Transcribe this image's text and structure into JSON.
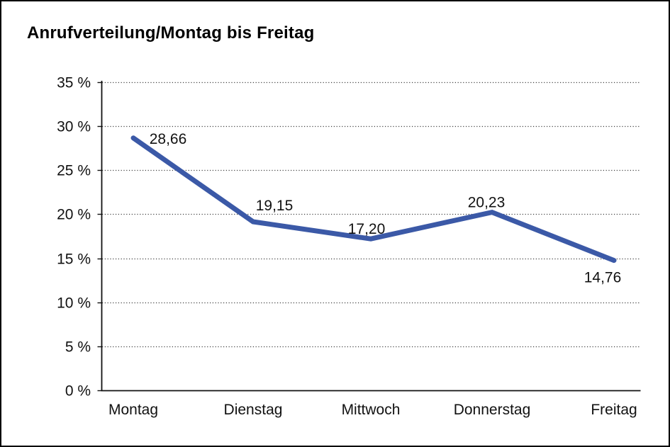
{
  "chart_data": {
    "type": "line",
    "title": "Anrufverteilung/Montag bis Freitag",
    "categories": [
      "Montag",
      "Dienstag",
      "Mittwoch",
      "Donnerstag",
      "Freitag"
    ],
    "series": [
      {
        "name": "Anrufverteilung",
        "values": [
          28.66,
          19.15,
          17.2,
          20.23,
          14.76
        ]
      }
    ],
    "data_labels": [
      "28,66",
      "19,15",
      "17,20",
      "20,23",
      "14,76"
    ],
    "y_tick_labels_bottom_to_top": [
      "0 %",
      "5 %",
      "10 %",
      "15 %",
      "20 %",
      "25 %",
      "30 %",
      "35 %"
    ],
    "ylim": [
      0,
      35
    ],
    "y_tick_step": 5,
    "xlabel": "",
    "ylabel": "",
    "grid": "horizontal-dotted",
    "legend": "none",
    "colors": {
      "line": "#3B59A7",
      "axis": "#111111",
      "gridline": "#3f3f3f",
      "text": "#111111",
      "background": "#ffffff",
      "frame_border": "#000000"
    }
  }
}
